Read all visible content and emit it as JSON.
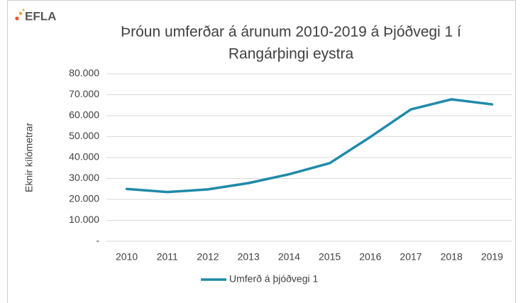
{
  "logo": "EFLA",
  "chart_data": {
    "type": "line",
    "title": [
      "Þróun umferðar á árunum 2010-2019 á Þjóðvegi 1 í",
      "Rangárþingi eystra"
    ],
    "y_label": "Eknir kílómetrar",
    "categories": [
      "2010",
      "2011",
      "2012",
      "2013",
      "2014",
      "2015",
      "2016",
      "2017",
      "2018",
      "2019"
    ],
    "series": [
      {
        "name": "Umferð á þjóðvegi 1",
        "color": "#1f8aa8",
        "values": [
          25000,
          23500,
          24800,
          27800,
          32000,
          37300,
          49800,
          63000,
          67800,
          65400
        ]
      }
    ],
    "ylim": [
      0,
      80000
    ],
    "yticks": [
      {
        "value": 0,
        "label": "-"
      },
      {
        "value": 10000,
        "label": "10.000"
      },
      {
        "value": 20000,
        "label": "20.000"
      },
      {
        "value": 30000,
        "label": "30.000"
      },
      {
        "value": 40000,
        "label": "40.000"
      },
      {
        "value": 50000,
        "label": "50.000"
      },
      {
        "value": 60000,
        "label": "60.000"
      },
      {
        "value": 70000,
        "label": "70.000"
      },
      {
        "value": 80000,
        "label": "80.000"
      }
    ],
    "grid": true,
    "legend": "bottom"
  }
}
